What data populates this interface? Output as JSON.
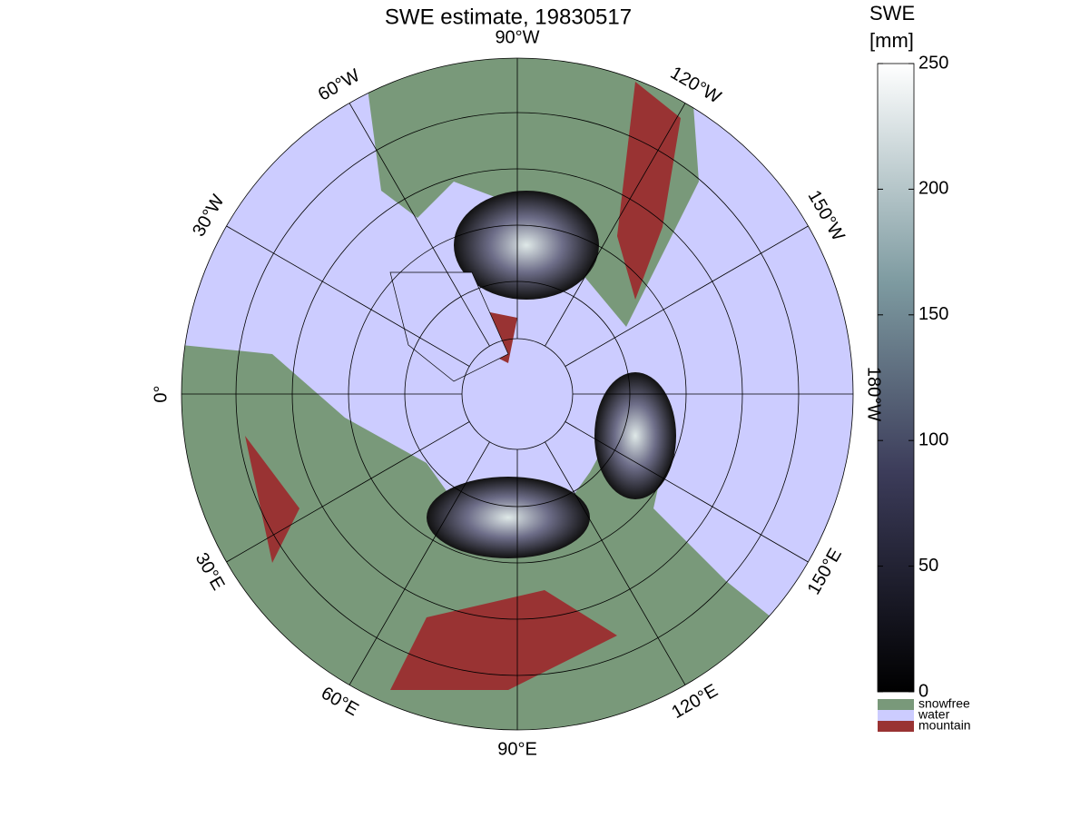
{
  "title": "SWE estimate, 19830517",
  "map": {
    "lon_labels": [
      "0°",
      "30°W",
      "60°W",
      "90°W",
      "120°W",
      "150°W",
      "180°W",
      "150°E",
      "120°E",
      "90°E",
      "60°E",
      "30°E"
    ]
  },
  "colorbar": {
    "label": [
      "SWE",
      "[mm]"
    ],
    "lim": [
      0,
      250
    ],
    "ticks": [
      0,
      50,
      100,
      150,
      200,
      250
    ]
  },
  "legend": [
    {
      "name": "snowfree",
      "color": "#79997a"
    },
    {
      "name": "water",
      "color": "#ccccff"
    },
    {
      "name": "mountain",
      "color": "#993333"
    }
  ]
}
